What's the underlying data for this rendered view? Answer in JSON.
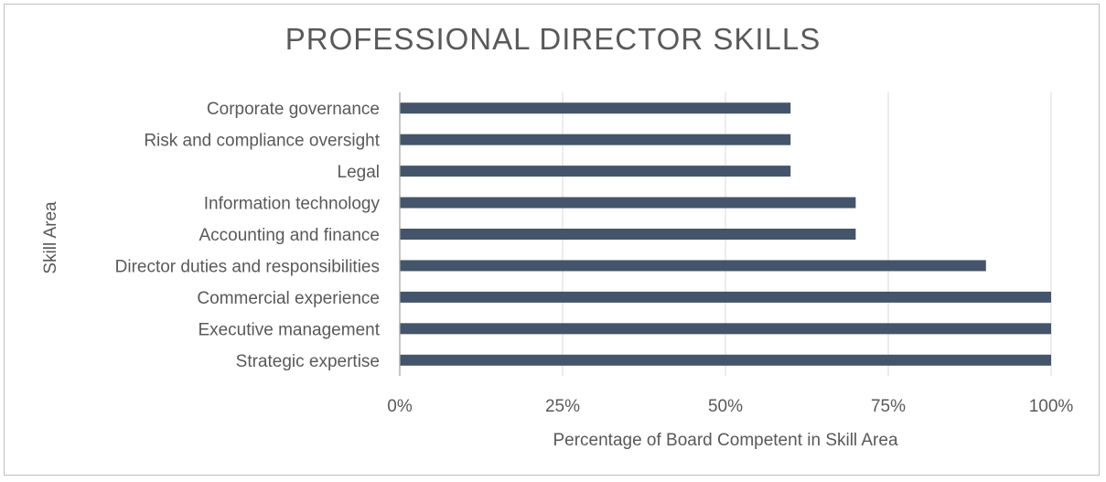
{
  "chart_data": {
    "type": "bar",
    "orientation": "horizontal",
    "title": "PROFESSIONAL DIRECTOR SKILLS",
    "xlabel": "Percentage of Board Competent in Skill Area",
    "ylabel": "Skill Area",
    "categories": [
      "Corporate governance",
      "Risk and compliance oversight",
      "Legal",
      "Information technology",
      "Accounting and finance",
      "Director duties and responsibilities",
      "Commercial experience",
      "Executive management",
      "Strategic expertise"
    ],
    "values": [
      60,
      60,
      60,
      70,
      70,
      90,
      100,
      100,
      100
    ],
    "xlim": [
      0,
      100
    ],
    "xticks": [
      0,
      25,
      50,
      75,
      100
    ],
    "xtick_labels": [
      "0%",
      "25%",
      "50%",
      "75%",
      "100%"
    ],
    "bar_color": "#44546a",
    "grid": "vertical"
  }
}
